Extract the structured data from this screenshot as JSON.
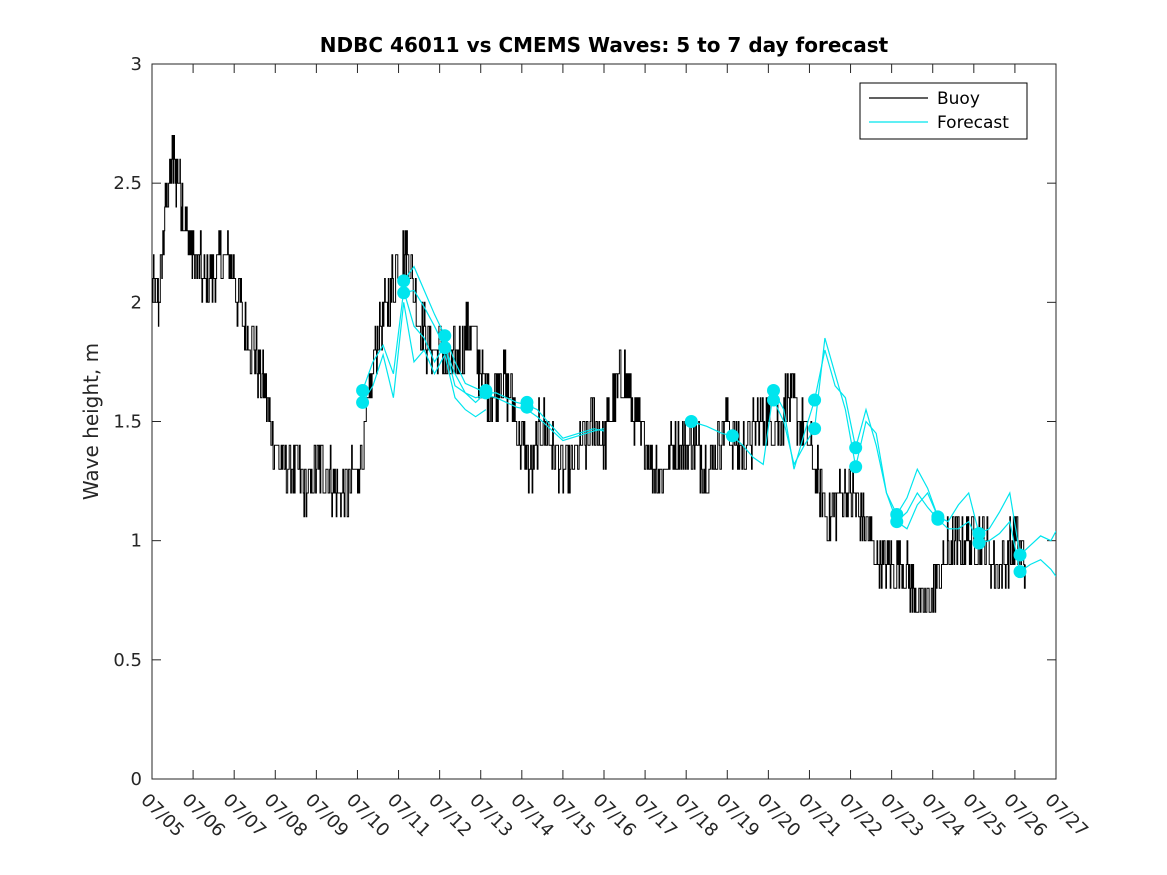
{
  "chart_data": {
    "type": "line",
    "title": "NDBC 46011 vs CMEMS Waves: 5 to 7 day forecast",
    "xlabel": "",
    "ylabel": "Wave height, m",
    "xlim": [
      "07/05",
      "07/27"
    ],
    "ylim": [
      0,
      3
    ],
    "yticks": [
      0,
      0.5,
      1,
      1.5,
      2,
      2.5,
      3
    ],
    "xtick_labels": [
      "07/05",
      "07/06",
      "07/07",
      "07/08",
      "07/09",
      "07/10",
      "07/11",
      "07/12",
      "07/13",
      "07/14",
      "07/15",
      "07/16",
      "07/17",
      "07/18",
      "07/19",
      "07/20",
      "07/21",
      "07/22",
      "07/23",
      "07/24",
      "07/25",
      "07/26",
      "07/27"
    ],
    "grid": false,
    "legend_position": "top-right",
    "colors": {
      "buoy": "#000000",
      "forecast": "#00e5ee",
      "axes": "#262626"
    },
    "legend": [
      {
        "label": "Buoy",
        "color": "#000000"
      },
      {
        "label": "Forecast",
        "color": "#00e5ee"
      }
    ],
    "series": [
      {
        "name": "Buoy",
        "style": "line",
        "x": [
          "07/05 00:00",
          "07/05 04:00",
          "07/05 08:00",
          "07/05 12:00",
          "07/05 16:00",
          "07/05 20:00",
          "07/06 00:00",
          "07/06 06:00",
          "07/06 12:00",
          "07/06 18:00",
          "07/07 00:00",
          "07/07 06:00",
          "07/07 12:00",
          "07/07 18:00",
          "07/08 00:00",
          "07/08 06:00",
          "07/08 12:00",
          "07/08 18:00",
          "07/09 00:00",
          "07/09 06:00",
          "07/09 12:00",
          "07/09 18:00",
          "07/10 00:00",
          "07/10 06:00",
          "07/10 12:00",
          "07/10 18:00",
          "07/11 00:00",
          "07/11 06:00",
          "07/11 12:00",
          "07/11 18:00",
          "07/12 00:00",
          "07/12 06:00",
          "07/12 12:00",
          "07/12 18:00",
          "07/13 00:00",
          "07/13 06:00",
          "07/13 12:00",
          "07/13 18:00",
          "07/14 00:00",
          "07/14 06:00",
          "07/14 12:00",
          "07/14 18:00",
          "07/15 00:00",
          "07/15 06:00",
          "07/15 12:00",
          "07/15 18:00",
          "07/16 00:00",
          "07/16 06:00",
          "07/16 12:00",
          "07/16 18:00",
          "07/17 00:00",
          "07/17 06:00",
          "07/17 12:00",
          "07/17 18:00",
          "07/18 00:00",
          "07/18 06:00",
          "07/18 12:00",
          "07/18 18:00",
          "07/19 00:00",
          "07/19 06:00",
          "07/19 12:00",
          "07/19 18:00",
          "07/20 00:00",
          "07/20 06:00",
          "07/20 12:00",
          "07/20 18:00",
          "07/21 00:00",
          "07/21 06:00",
          "07/21 12:00",
          "07/21 18:00",
          "07/22 00:00",
          "07/22 06:00",
          "07/22 12:00",
          "07/22 18:00",
          "07/23 00:00",
          "07/23 06:00",
          "07/23 12:00",
          "07/23 18:00",
          "07/24 00:00",
          "07/24 06:00",
          "07/24 12:00",
          "07/24 18:00",
          "07/25 00:00",
          "07/25 06:00",
          "07/25 12:00",
          "07/25 18:00",
          "07/26 00:00",
          "07/26 06:00"
        ],
        "y": [
          2.1,
          2.0,
          2.4,
          2.6,
          2.5,
          2.3,
          2.2,
          2.1,
          2.1,
          2.2,
          2.1,
          1.9,
          1.8,
          1.6,
          1.4,
          1.3,
          1.3,
          1.2,
          1.3,
          1.3,
          1.2,
          1.2,
          1.3,
          1.5,
          1.9,
          2.0,
          2.2,
          2.2,
          1.9,
          1.8,
          1.8,
          1.7,
          1.8,
          1.9,
          1.7,
          1.6,
          1.7,
          1.6,
          1.4,
          1.3,
          1.5,
          1.4,
          1.3,
          1.3,
          1.4,
          1.5,
          1.4,
          1.6,
          1.7,
          1.5,
          1.4,
          1.3,
          1.3,
          1.4,
          1.4,
          1.4,
          1.3,
          1.4,
          1.5,
          1.4,
          1.4,
          1.5,
          1.5,
          1.5,
          1.6,
          1.5,
          1.4,
          1.2,
          1.1,
          1.2,
          1.2,
          1.1,
          1.0,
          0.9,
          0.9,
          0.9,
          0.8,
          0.7,
          0.8,
          0.9,
          1.0,
          1.0,
          1.0,
          1.0,
          0.9,
          0.9,
          1.0,
          0.9
        ]
      },
      {
        "name": "Forecast",
        "style": "line",
        "segments": [
          {
            "x": [
              "07/10 03:00",
              "07/10 09:00",
              "07/10 15:00",
              "07/10 21:00",
              "07/11 03:00",
              "07/11 09:00",
              "07/11 15:00",
              "07/11 21:00",
              "07/12 03:00",
              "07/12 09:00",
              "07/12 15:00",
              "07/12 21:00",
              "07/13 03:00"
            ],
            "y": [
              1.63,
              1.75,
              1.82,
              1.7,
              2.05,
              1.9,
              1.85,
              1.75,
              1.82,
              1.65,
              1.62,
              1.58,
              1.62
            ]
          },
          {
            "x": [
              "07/10 03:00",
              "07/10 09:00",
              "07/10 15:00",
              "07/10 21:00",
              "07/11 03:00",
              "07/11 09:00",
              "07/11 15:00",
              "07/11 21:00",
              "07/12 03:00",
              "07/12 09:00",
              "07/12 15:00",
              "07/12 21:00",
              "07/13 03:00"
            ],
            "y": [
              1.58,
              1.65,
              1.78,
              1.6,
              2.0,
              1.75,
              1.8,
              1.7,
              1.78,
              1.6,
              1.55,
              1.52,
              1.55
            ]
          },
          {
            "x": [
              "07/11 03:00",
              "07/11 09:00",
              "07/11 15:00",
              "07/11 21:00",
              "07/12 03:00",
              "07/12 09:00",
              "07/12 15:00",
              "07/12 21:00",
              "07/13 03:00",
              "07/13 09:00",
              "07/13 15:00",
              "07/13 21:00",
              "07/14 03:00",
              "07/14 09:00",
              "07/14 15:00",
              "07/15 00:00",
              "07/15 09:00",
              "07/15 18:00",
              "07/16 00:00"
            ],
            "y": [
              2.09,
              2.15,
              2.05,
              1.95,
              1.86,
              1.75,
              1.66,
              1.64,
              1.62,
              1.62,
              1.6,
              1.58,
              1.57,
              1.55,
              1.5,
              1.43,
              1.45,
              1.47,
              1.46
            ]
          },
          {
            "x": [
              "07/11 03:00",
              "07/11 09:00",
              "07/11 15:00",
              "07/11 21:00",
              "07/12 03:00",
              "07/12 09:00",
              "07/12 15:00",
              "07/12 21:00",
              "07/13 03:00",
              "07/13 09:00",
              "07/13 15:00",
              "07/13 21:00",
              "07/14 03:00",
              "07/14 09:00",
              "07/14 15:00",
              "07/15 00:00",
              "07/15 09:00",
              "07/15 18:00",
              "07/16 00:00"
            ],
            "y": [
              2.04,
              2.05,
              1.98,
              1.9,
              1.81,
              1.7,
              1.62,
              1.6,
              1.61,
              1.6,
              1.58,
              1.56,
              1.55,
              1.52,
              1.48,
              1.42,
              1.44,
              1.46,
              1.47
            ]
          },
          {
            "x": [
              "07/18 03:00",
              "07/18 12:00",
              "07/18 21:00",
              "07/19 03:00",
              "07/19 09:00",
              "07/19 15:00",
              "07/19 21:00",
              "07/20 03:00",
              "07/20 09:00",
              "07/20 15:00",
              "07/20 21:00",
              "07/21 03:00",
              "07/21 09:00",
              "07/21 15:00",
              "07/21 21:00",
              "07/22 03:00",
              "07/22 09:00",
              "07/22 15:00",
              "07/22 21:00",
              "07/23 03:00"
            ],
            "y": [
              1.5,
              1.48,
              1.45,
              1.44,
              1.4,
              1.35,
              1.32,
              1.63,
              1.55,
              1.3,
              1.45,
              1.59,
              1.8,
              1.65,
              1.6,
              1.39,
              1.55,
              1.4,
              1.2,
              1.11
            ]
          },
          {
            "x": [
              "07/20 03:00",
              "07/20 09:00",
              "07/20 15:00",
              "07/20 21:00",
              "07/21 03:00",
              "07/21 09:00",
              "07/21 15:00",
              "07/21 21:00",
              "07/22 03:00",
              "07/22 09:00",
              "07/22 15:00",
              "07/22 21:00",
              "07/23 03:00",
              "07/23 09:00",
              "07/23 15:00",
              "07/23 21:00",
              "07/24 03:00"
            ],
            "y": [
              1.59,
              1.5,
              1.32,
              1.4,
              1.47,
              1.85,
              1.7,
              1.55,
              1.31,
              1.5,
              1.45,
              1.2,
              1.08,
              1.05,
              1.15,
              1.2,
              1.1
            ]
          },
          {
            "x": [
              "07/23 03:00",
              "07/23 09:00",
              "07/23 15:00",
              "07/23 21:00",
              "07/24 03:00",
              "07/24 09:00",
              "07/24 15:00",
              "07/24 21:00",
              "07/25 03:00",
              "07/25 09:00",
              "07/25 15:00",
              "07/25 21:00",
              "07/26 03:00",
              "07/26 09:00",
              "07/26 15:00",
              "07/26 21:00",
              "07/27 00:00"
            ],
            "y": [
              1.11,
              1.18,
              1.3,
              1.22,
              1.1,
              1.08,
              1.15,
              1.2,
              1.03,
              1.05,
              1.12,
              1.2,
              0.94,
              0.98,
              1.02,
              1.0,
              1.04
            ]
          },
          {
            "x": [
              "07/23 03:00",
              "07/23 09:00",
              "07/23 15:00",
              "07/23 21:00",
              "07/24 03:00",
              "07/24 09:00",
              "07/24 15:00",
              "07/24 21:00",
              "07/25 03:00",
              "07/25 09:00",
              "07/25 15:00",
              "07/25 21:00",
              "07/26 03:00",
              "07/26 09:00",
              "07/26 15:00",
              "07/26 21:00",
              "07/27 00:00"
            ],
            "y": [
              1.08,
              1.12,
              1.2,
              1.14,
              1.09,
              1.05,
              1.05,
              1.08,
              0.99,
              1.0,
              1.03,
              1.08,
              0.87,
              0.9,
              0.92,
              0.88,
              0.85
            ]
          }
        ]
      },
      {
        "name": "Forecast",
        "style": "markers",
        "x": [
          "07/10 03:00",
          "07/10 03:00",
          "07/11 03:00",
          "07/11 03:00",
          "07/12 03:00",
          "07/12 03:00",
          "07/13 03:00",
          "07/13 03:00",
          "07/14 03:00",
          "07/14 03:00",
          "07/18 03:00",
          "07/19 03:00",
          "07/20 03:00",
          "07/20 03:00",
          "07/21 03:00",
          "07/21 03:00",
          "07/22 03:00",
          "07/22 03:00",
          "07/23 03:00",
          "07/23 03:00",
          "07/24 03:00",
          "07/24 03:00",
          "07/25 03:00",
          "07/25 03:00",
          "07/26 03:00",
          "07/26 03:00"
        ],
        "y": [
          1.63,
          1.58,
          2.09,
          2.04,
          1.86,
          1.81,
          1.63,
          1.62,
          1.58,
          1.56,
          1.5,
          1.44,
          1.63,
          1.59,
          1.59,
          1.47,
          1.39,
          1.31,
          1.11,
          1.08,
          1.1,
          1.09,
          1.03,
          0.99,
          0.94,
          0.87
        ]
      }
    ]
  }
}
